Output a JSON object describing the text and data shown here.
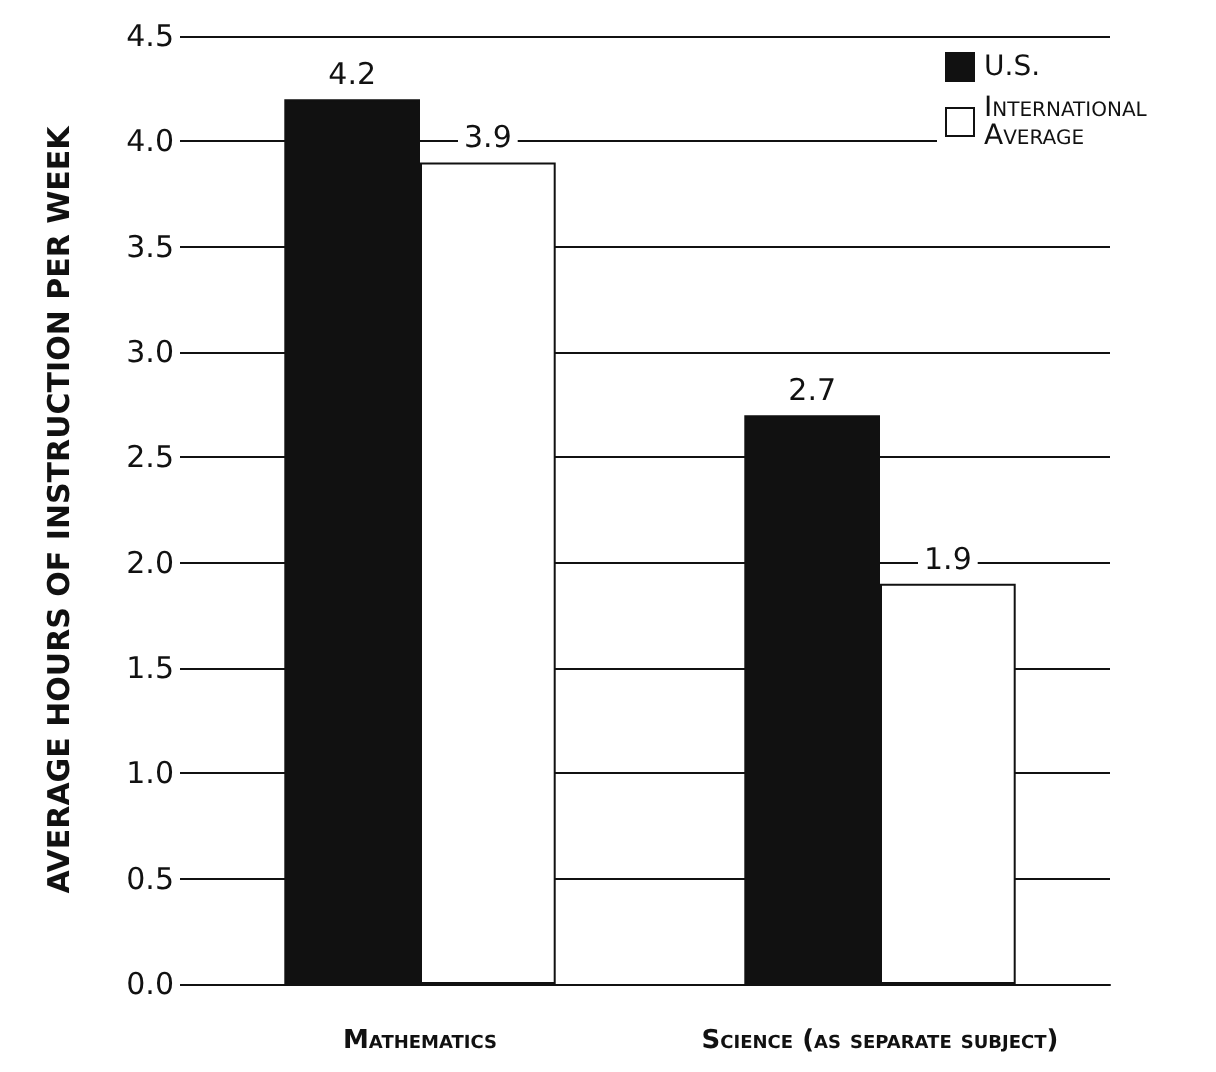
{
  "chart_data": {
    "type": "bar",
    "ylabel": "AVERAGE HOURS OF INSTRUCTION PER WEEK",
    "categories": [
      "Mathematics",
      "Science (as separate subject)"
    ],
    "series": [
      {
        "name": "U.S.",
        "color": "#111111",
        "values": [
          4.2,
          2.7
        ]
      },
      {
        "name": "International Average",
        "color": "#ffffff",
        "values": [
          3.9,
          1.9
        ]
      }
    ],
    "ylim": [
      0,
      4.5
    ],
    "yticks": [
      {
        "value": 0,
        "label": "0.0"
      },
      0.5,
      {
        "value": 1,
        "label": "1.0"
      },
      1.5,
      {
        "value": 2,
        "label": "2.0"
      },
      2.5,
      {
        "value": 3,
        "label": "3.0"
      },
      3.5,
      {
        "value": 4,
        "label": "4.0"
      },
      4.5
    ],
    "grid": "y",
    "legend": "top right",
    "data_labels": true
  }
}
